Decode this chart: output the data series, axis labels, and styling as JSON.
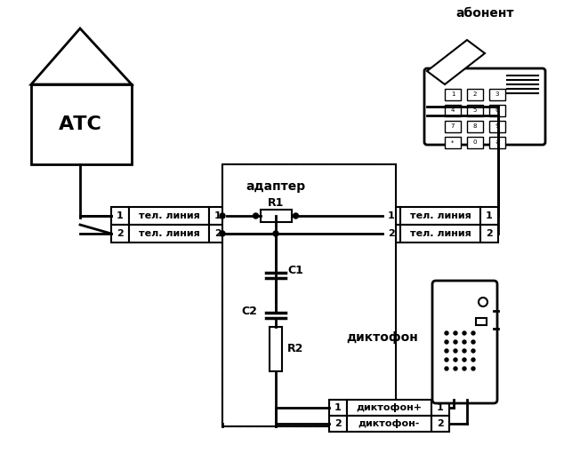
{
  "title": "",
  "background_color": "#ffffff",
  "line_color": "#000000",
  "atc_label": "АТС",
  "subscriber_label": "абонент",
  "adapter_label": "адаптер",
  "dictophone_label": "диктофон",
  "tel_line_label": "тел. линия",
  "dictophone_plus_label": "диктофон+",
  "dictophone_minus_label": "диктофон-",
  "r1_label": "R1",
  "r2_label": "R2",
  "c1_label": "C1",
  "c2_label": "C2"
}
